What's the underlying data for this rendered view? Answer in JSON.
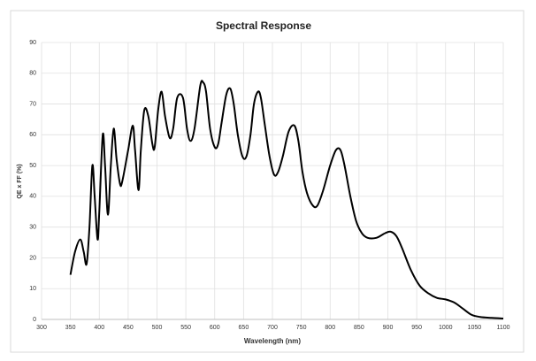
{
  "chart_data": {
    "type": "line",
    "title": "Spectral Response",
    "x_label": "Wavelength  (nm)",
    "y_label": "QE x FF (%)",
    "x": [
      350,
      358,
      367,
      373,
      378,
      383,
      388,
      392,
      397,
      400,
      406,
      410,
      415,
      420,
      425,
      430,
      436,
      440,
      450,
      458,
      462,
      468,
      472,
      478,
      485,
      492,
      496,
      502,
      508,
      514,
      522,
      528,
      535,
      545,
      552,
      558,
      565,
      575,
      580,
      585,
      592,
      600,
      606,
      612,
      620,
      627,
      633,
      640,
      648,
      655,
      662,
      668,
      675,
      680,
      687,
      695,
      703,
      710,
      718,
      728,
      738,
      745,
      752,
      760,
      770,
      778,
      788,
      800,
      810,
      818,
      825,
      835,
      845,
      855,
      865,
      880,
      895,
      905,
      915,
      925,
      940,
      955,
      970,
      985,
      1000,
      1015,
      1030,
      1045,
      1060,
      1080,
      1100
    ],
    "series": [
      {
        "name": "QE x FF",
        "color": "#000000",
        "values": [
          14.5,
          22,
          26,
          22,
          18,
          30,
          50,
          40,
          26,
          35,
          60,
          50,
          34,
          50,
          62,
          52,
          44,
          45,
          55,
          63,
          55,
          42,
          55,
          68,
          66,
          57,
          56,
          68,
          74,
          66,
          59,
          62,
          72,
          72,
          62,
          58,
          62,
          76,
          77,
          74,
          62,
          56,
          57,
          64,
          73,
          75,
          70,
          60,
          53,
          53,
          60,
          70,
          74,
          72,
          63,
          53,
          47,
          48,
          53,
          61,
          63,
          58,
          48,
          41,
          37,
          37,
          42,
          50,
          55,
          55,
          50,
          40,
          32,
          28,
          26.5,
          26.5,
          28,
          28.5,
          27,
          23,
          16,
          11,
          8.5,
          7,
          6.5,
          5.5,
          3.5,
          1.5,
          0.8,
          0.5,
          0.3
        ]
      }
    ],
    "xlim": [
      300,
      1100
    ],
    "xticks": [
      300,
      350,
      400,
      450,
      500,
      550,
      600,
      650,
      700,
      750,
      800,
      850,
      900,
      950,
      1000,
      1050,
      1100
    ],
    "ylim": [
      0,
      90
    ],
    "yticks": [
      0,
      10,
      20,
      30,
      40,
      50,
      60,
      70,
      80,
      90
    ],
    "grid": true
  }
}
